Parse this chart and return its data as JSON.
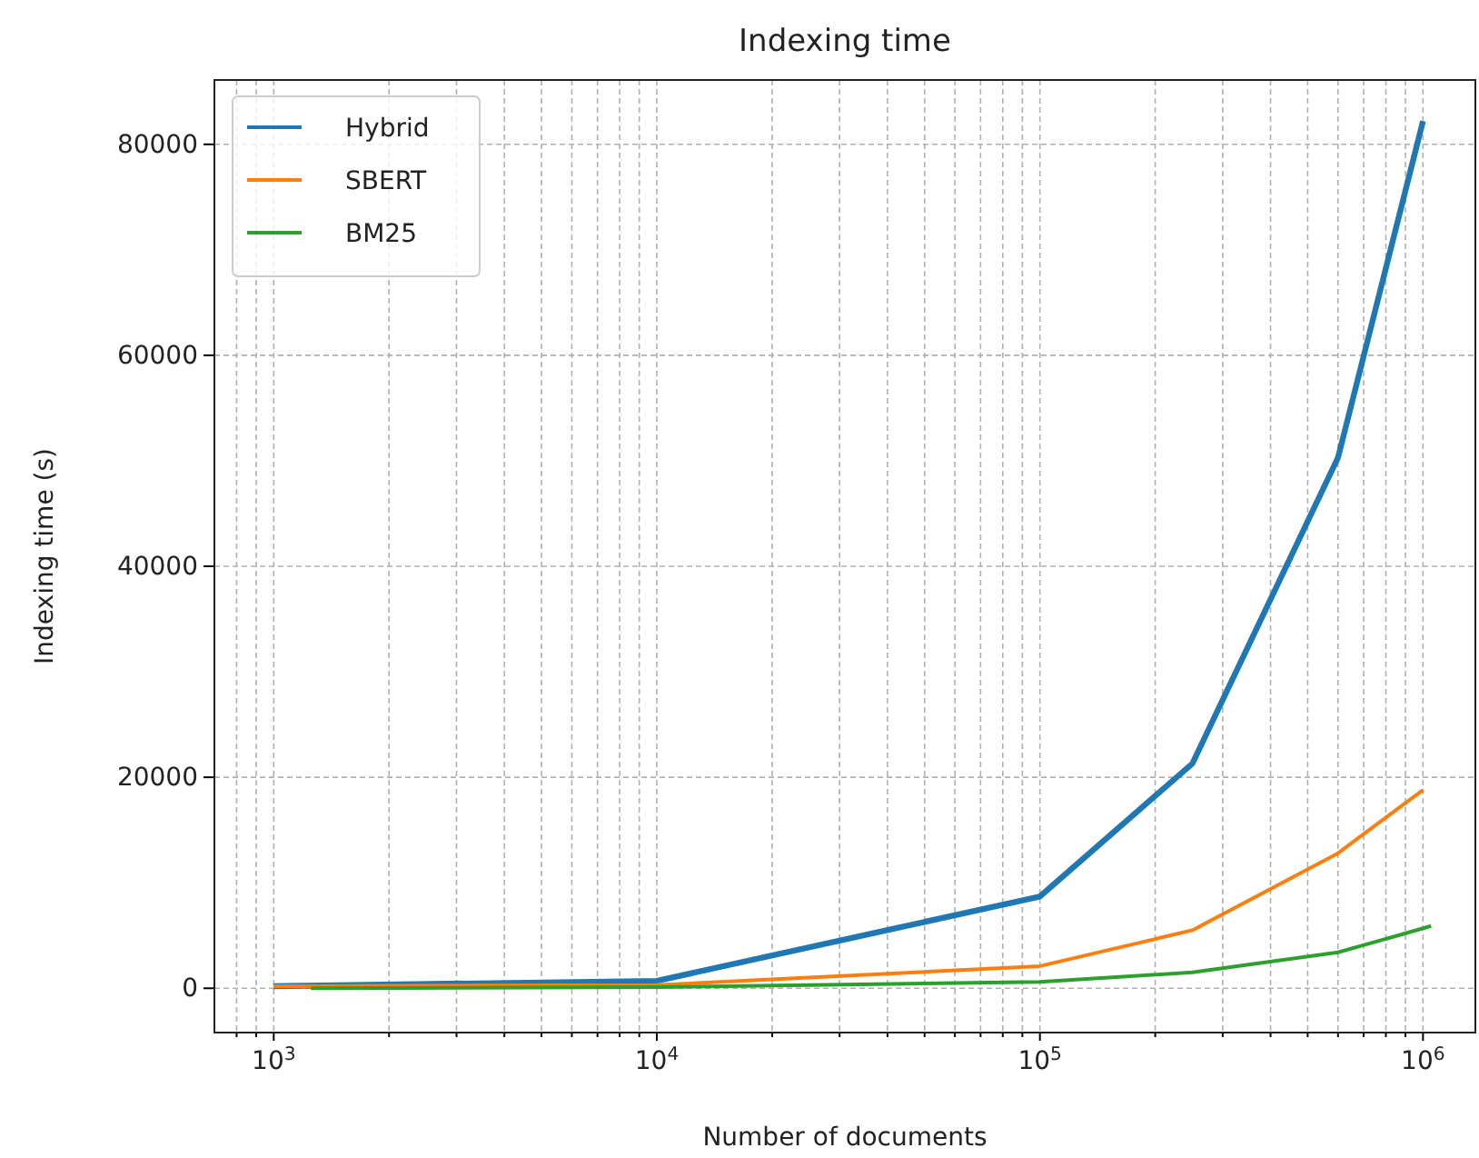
{
  "chart_data": {
    "type": "line",
    "title": "Indexing time",
    "xlabel": "Number of documents",
    "ylabel": "Indexing time (s)",
    "log": "x",
    "grid": true,
    "legend": "top left",
    "line_style": "solid",
    "marker": "none",
    "xlim": [
      700,
      1370000
    ],
    "ylim": [
      -4200,
      86100
    ],
    "xticks": [
      {
        "value": 1000,
        "label": "10$^{3}$"
      },
      {
        "value": 2000,
        "label": null
      },
      {
        "value": 3000,
        "label": null
      },
      {
        "value": 4000,
        "label": null
      },
      {
        "value": 5000,
        "label": null
      },
      {
        "value": 6000,
        "label": null
      },
      {
        "value": 7000,
        "label": null
      },
      {
        "value": 8000,
        "label": null
      },
      {
        "value": 9000,
        "label": null
      },
      {
        "value": 10000,
        "label": "10$^{4}$"
      },
      {
        "value": 20000,
        "label": null
      },
      {
        "value": 30000,
        "label": null
      },
      {
        "value": 40000,
        "label": null
      },
      {
        "value": 50000,
        "label": null
      },
      {
        "value": 60000,
        "label": null
      },
      {
        "value": 70000,
        "label": null
      },
      {
        "value": 80000,
        "label": null
      },
      {
        "value": 90000,
        "label": null
      },
      {
        "value": 100000,
        "label": "10$^{5}$"
      },
      {
        "value": 200000,
        "label": null
      },
      {
        "value": 300000,
        "label": null
      },
      {
        "value": 400000,
        "label": null
      },
      {
        "value": 500000,
        "label": null
      },
      {
        "value": 600000,
        "label": null
      },
      {
        "value": 700000,
        "label": null
      },
      {
        "value": 800000,
        "label": null
      },
      {
        "value": 900000,
        "label": null
      },
      {
        "value": 1000000,
        "label": "10$^{6}$"
      },
      {
        "value": 800,
        "label": null
      },
      {
        "value": 900,
        "label": null
      }
    ],
    "yticks": [
      0,
      20000,
      40000,
      60000,
      80000
    ],
    "series": [
      {
        "name": "Hybrid",
        "color": "#1f77b4",
        "x": [
          1000,
          10000,
          100000,
          250000,
          600000,
          1000000
        ],
        "values": [
          200,
          700,
          8700,
          21300,
          50300,
          82200
        ]
      },
      {
        "name": "SBERT",
        "color": "#ff7f0e",
        "x": [
          1000,
          10000,
          100000,
          250000,
          600000,
          1000000
        ],
        "values": [
          200,
          300,
          2100,
          5500,
          12800,
          18800
        ]
      },
      {
        "name": "BM25",
        "color": "#2ca02c",
        "x": [
          1250,
          10000,
          100000,
          250000,
          600000,
          1050000
        ],
        "values": [
          0,
          100,
          600,
          1500,
          3400,
          5900
        ]
      }
    ]
  }
}
